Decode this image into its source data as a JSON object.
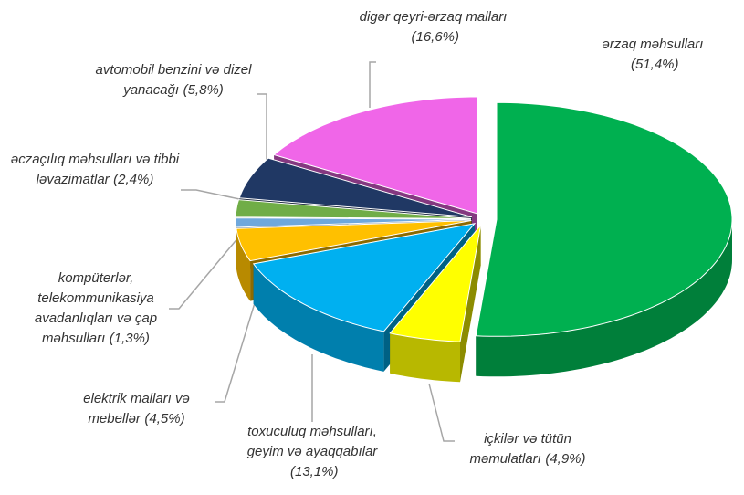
{
  "chart_data": {
    "type": "pie3d",
    "categories": [
      "ərzaq məhsulları",
      "içkilər və tütün məmulatları",
      "toxuculuq məhsulları, geyim və ayaqqabılar",
      "elektrik malları və mebellər",
      "kompüterlər, telekommunikasiya avadanlıqları və çap məhsulları",
      "əczaçılıq məhsulları və tibbi ləvazimatlar",
      "avtomobil benzini və dizel yanacağı",
      "digər qeyri-ərzaq malları"
    ],
    "values": [
      51.4,
      4.9,
      13.1,
      4.5,
      1.3,
      2.4,
      5.8,
      16.6
    ],
    "value_labels": [
      "(51,4%)",
      "(4,9%)",
      "(13,1%)",
      "(4,5%)",
      "(1,3%)",
      "(2,4%)",
      "(5,8%)",
      "(16,6%)"
    ],
    "colors": [
      "#00b050",
      "#ffff00",
      "#00b0f0",
      "#ffc000",
      "#6fa8dc",
      "#70ad47",
      "#203864",
      "#f066e8"
    ]
  }
}
